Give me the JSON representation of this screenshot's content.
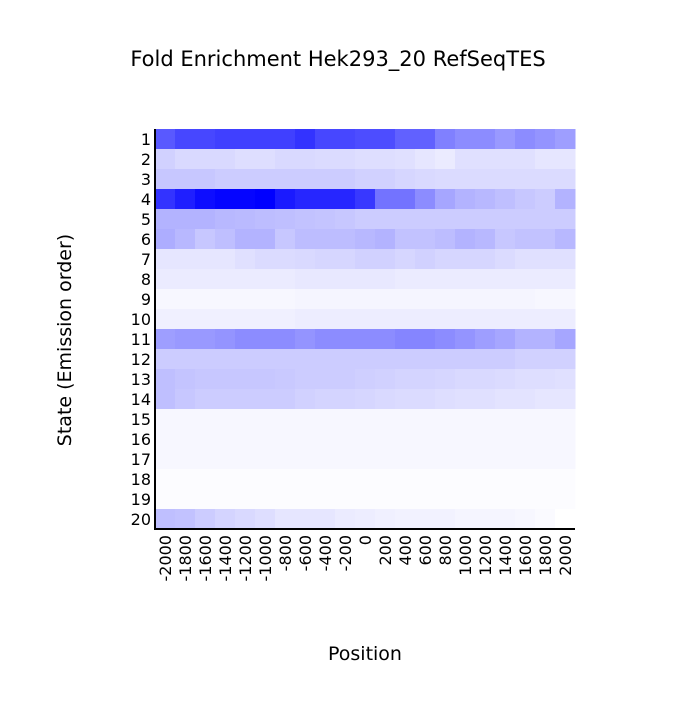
{
  "chart_data": {
    "type": "heatmap",
    "title": "Fold Enrichment Hek293_20 RefSeqTES",
    "xlabel": "Position",
    "ylabel": "State (Emission order)",
    "x": [
      -2000,
      -1800,
      -1600,
      -1400,
      -1200,
      -1000,
      -800,
      -600,
      -400,
      -200,
      0,
      200,
      400,
      600,
      800,
      1000,
      1200,
      1400,
      1600,
      1800,
      2000
    ],
    "y": [
      1,
      2,
      3,
      4,
      5,
      6,
      7,
      8,
      9,
      10,
      11,
      12,
      13,
      14,
      15,
      16,
      17,
      18,
      19,
      20
    ],
    "values": [
      [
        0.65,
        0.72,
        0.72,
        0.75,
        0.75,
        0.75,
        0.75,
        0.8,
        0.72,
        0.72,
        0.7,
        0.7,
        0.62,
        0.62,
        0.5,
        0.45,
        0.45,
        0.4,
        0.45,
        0.42,
        0.38
      ],
      [
        0.18,
        0.15,
        0.15,
        0.15,
        0.13,
        0.13,
        0.15,
        0.15,
        0.14,
        0.14,
        0.13,
        0.13,
        0.12,
        0.1,
        0.08,
        0.12,
        0.12,
        0.12,
        0.12,
        0.1,
        0.1
      ],
      [
        0.22,
        0.22,
        0.22,
        0.2,
        0.2,
        0.2,
        0.2,
        0.2,
        0.2,
        0.2,
        0.18,
        0.18,
        0.16,
        0.15,
        0.14,
        0.14,
        0.14,
        0.14,
        0.14,
        0.14,
        0.14
      ],
      [
        0.8,
        0.88,
        0.95,
        0.98,
        0.98,
        1.0,
        0.9,
        0.85,
        0.85,
        0.85,
        0.78,
        0.55,
        0.55,
        0.45,
        0.35,
        0.3,
        0.28,
        0.25,
        0.22,
        0.2,
        0.3
      ],
      [
        0.3,
        0.3,
        0.3,
        0.28,
        0.27,
        0.26,
        0.25,
        0.24,
        0.23,
        0.22,
        0.2,
        0.2,
        0.2,
        0.2,
        0.2,
        0.2,
        0.2,
        0.2,
        0.2,
        0.2,
        0.2
      ],
      [
        0.32,
        0.28,
        0.22,
        0.25,
        0.3,
        0.3,
        0.22,
        0.26,
        0.26,
        0.26,
        0.28,
        0.3,
        0.24,
        0.24,
        0.26,
        0.3,
        0.28,
        0.22,
        0.24,
        0.24,
        0.28
      ],
      [
        0.1,
        0.1,
        0.1,
        0.1,
        0.12,
        0.14,
        0.14,
        0.15,
        0.16,
        0.16,
        0.18,
        0.18,
        0.16,
        0.18,
        0.16,
        0.16,
        0.16,
        0.14,
        0.12,
        0.12,
        0.12
      ],
      [
        0.08,
        0.08,
        0.08,
        0.08,
        0.08,
        0.08,
        0.08,
        0.09,
        0.09,
        0.09,
        0.09,
        0.09,
        0.08,
        0.08,
        0.08,
        0.08,
        0.08,
        0.08,
        0.08,
        0.08,
        0.08
      ],
      [
        0.03,
        0.03,
        0.03,
        0.03,
        0.03,
        0.03,
        0.03,
        0.04,
        0.04,
        0.04,
        0.04,
        0.04,
        0.04,
        0.04,
        0.04,
        0.04,
        0.04,
        0.04,
        0.04,
        0.03,
        0.03
      ],
      [
        0.06,
        0.06,
        0.06,
        0.06,
        0.06,
        0.06,
        0.06,
        0.07,
        0.07,
        0.07,
        0.07,
        0.07,
        0.07,
        0.07,
        0.07,
        0.07,
        0.07,
        0.07,
        0.07,
        0.07,
        0.07
      ],
      [
        0.38,
        0.4,
        0.4,
        0.42,
        0.45,
        0.45,
        0.45,
        0.42,
        0.45,
        0.45,
        0.45,
        0.45,
        0.48,
        0.48,
        0.45,
        0.42,
        0.38,
        0.35,
        0.3,
        0.3,
        0.35
      ],
      [
        0.2,
        0.2,
        0.2,
        0.2,
        0.2,
        0.2,
        0.2,
        0.2,
        0.2,
        0.2,
        0.2,
        0.2,
        0.2,
        0.2,
        0.2,
        0.2,
        0.2,
        0.2,
        0.18,
        0.18,
        0.18
      ],
      [
        0.25,
        0.23,
        0.22,
        0.22,
        0.22,
        0.22,
        0.21,
        0.2,
        0.2,
        0.2,
        0.19,
        0.18,
        0.17,
        0.17,
        0.16,
        0.15,
        0.15,
        0.14,
        0.13,
        0.13,
        0.12
      ],
      [
        0.25,
        0.22,
        0.2,
        0.2,
        0.2,
        0.2,
        0.2,
        0.18,
        0.17,
        0.17,
        0.16,
        0.15,
        0.14,
        0.14,
        0.13,
        0.12,
        0.12,
        0.11,
        0.11,
        0.1,
        0.1
      ],
      [
        0.03,
        0.03,
        0.03,
        0.03,
        0.03,
        0.03,
        0.03,
        0.03,
        0.03,
        0.03,
        0.03,
        0.03,
        0.03,
        0.03,
        0.03,
        0.03,
        0.03,
        0.03,
        0.03,
        0.03,
        0.03
      ],
      [
        0.03,
        0.03,
        0.03,
        0.03,
        0.03,
        0.03,
        0.03,
        0.03,
        0.03,
        0.03,
        0.03,
        0.03,
        0.03,
        0.03,
        0.03,
        0.03,
        0.03,
        0.03,
        0.03,
        0.03,
        0.03
      ],
      [
        0.03,
        0.03,
        0.03,
        0.03,
        0.03,
        0.03,
        0.03,
        0.03,
        0.03,
        0.03,
        0.03,
        0.03,
        0.03,
        0.03,
        0.03,
        0.03,
        0.03,
        0.03,
        0.03,
        0.03,
        0.03
      ],
      [
        0.01,
        0.01,
        0.01,
        0.01,
        0.01,
        0.01,
        0.01,
        0.01,
        0.01,
        0.01,
        0.01,
        0.01,
        0.01,
        0.01,
        0.01,
        0.01,
        0.01,
        0.01,
        0.01,
        0.01,
        0.01
      ],
      [
        0.01,
        0.01,
        0.01,
        0.01,
        0.01,
        0.01,
        0.01,
        0.01,
        0.01,
        0.01,
        0.01,
        0.01,
        0.01,
        0.01,
        0.01,
        0.01,
        0.01,
        0.01,
        0.01,
        0.01,
        0.01
      ],
      [
        0.25,
        0.24,
        0.2,
        0.17,
        0.15,
        0.13,
        0.1,
        0.1,
        0.1,
        0.08,
        0.07,
        0.06,
        0.05,
        0.05,
        0.05,
        0.04,
        0.04,
        0.04,
        0.03,
        0.02,
        0.0
      ]
    ],
    "zlim": [
      0,
      1
    ],
    "color_min": "#ffffff",
    "color_max": "#0000ff"
  }
}
